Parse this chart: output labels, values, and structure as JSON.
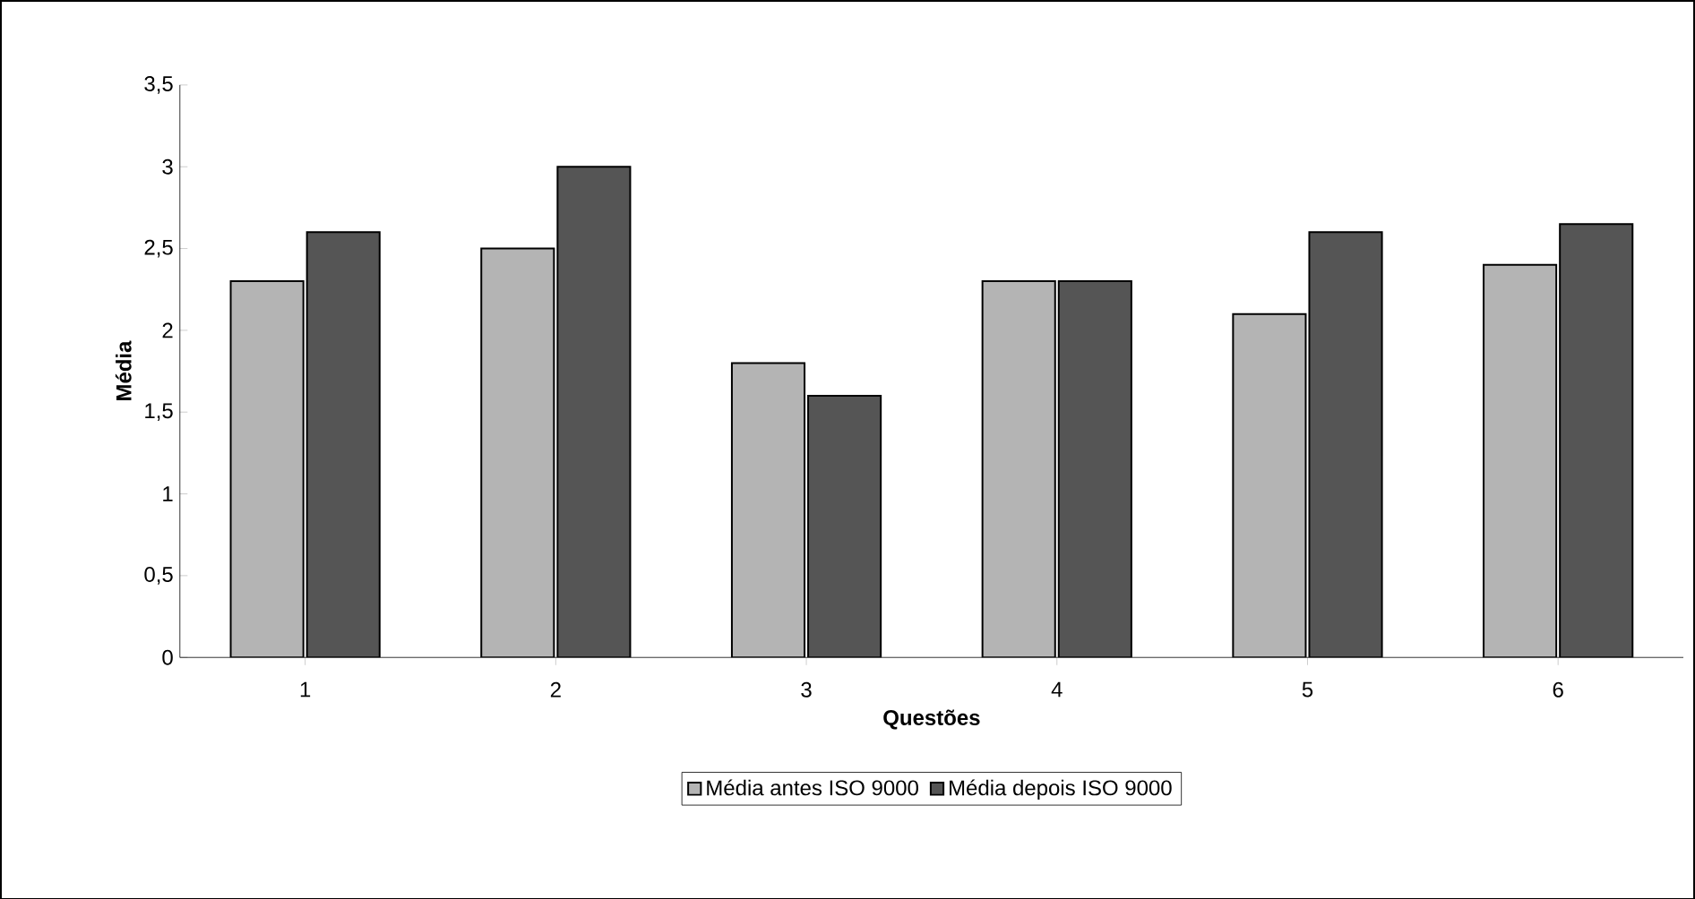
{
  "chart_data": {
    "type": "bar",
    "xlabel": "Questões",
    "ylabel": "Média",
    "categories": [
      "1",
      "2",
      "3",
      "4",
      "5",
      "6"
    ],
    "series": [
      {
        "name": "Média antes ISO 9000",
        "color": "#b4b4b4",
        "values": [
          2.3,
          2.5,
          1.8,
          2.3,
          2.1,
          2.4
        ]
      },
      {
        "name": "Média depois ISO 9000",
        "color": "#555555",
        "values": [
          2.6,
          3.0,
          1.6,
          2.3,
          2.6,
          2.65
        ]
      }
    ],
    "ylim": [
      0,
      3.5
    ],
    "yticks": [
      {
        "value": 0,
        "label": "0"
      },
      {
        "value": 0.5,
        "label": "0,5"
      },
      {
        "value": 1,
        "label": "1"
      },
      {
        "value": 1.5,
        "label": "1,5"
      },
      {
        "value": 2,
        "label": "2"
      },
      {
        "value": 2.5,
        "label": "2,5"
      },
      {
        "value": 3,
        "label": "3"
      },
      {
        "value": 3.5,
        "label": "3,5"
      }
    ],
    "grid": false,
    "legend": "bottom"
  }
}
